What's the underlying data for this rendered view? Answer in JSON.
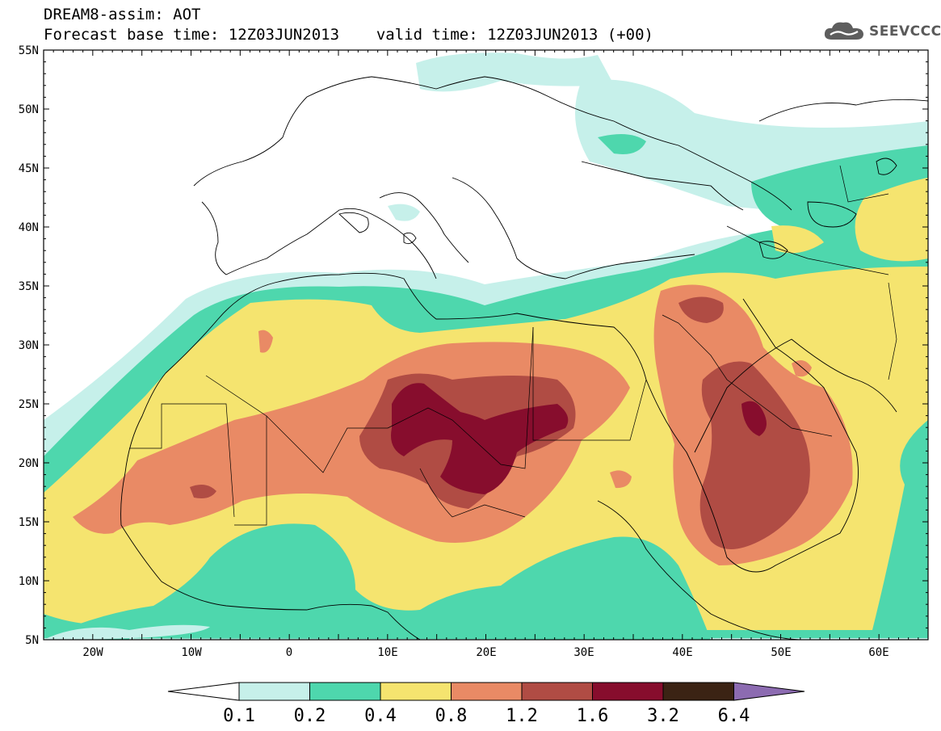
{
  "header": {
    "title": "DREAM8-assim: AOT",
    "base_time_label": "Forecast base time: 12Z03JUN2013",
    "valid_time_label": "valid time: 12Z03JUN2013 (+00)"
  },
  "logo": {
    "text": "SEEVCCC",
    "icon": "cloud-logo-icon"
  },
  "map": {
    "variable": "AOT",
    "lon_range": [
      -25,
      65
    ],
    "lat_range": [
      5,
      55
    ],
    "lat_labels": [
      "55N",
      "50N",
      "45N",
      "40N",
      "35N",
      "30N",
      "25N",
      "20N",
      "15N",
      "10N",
      "5N"
    ],
    "lon_labels": [
      "20W",
      "10W",
      "0",
      "10E",
      "20E",
      "30E",
      "40E",
      "50E",
      "60E"
    ]
  },
  "colorbar": {
    "levels": [
      "0.1",
      "0.2",
      "0.4",
      "0.8",
      "1.2",
      "1.6",
      "3.2",
      "6.4"
    ],
    "colors": [
      "#ffffff",
      "#c6f0ea",
      "#4ed7ad",
      "#f5e46f",
      "#e98a65",
      "#b04c44",
      "#870d2d",
      "#3b2314",
      "#8c6bb1"
    ]
  }
}
